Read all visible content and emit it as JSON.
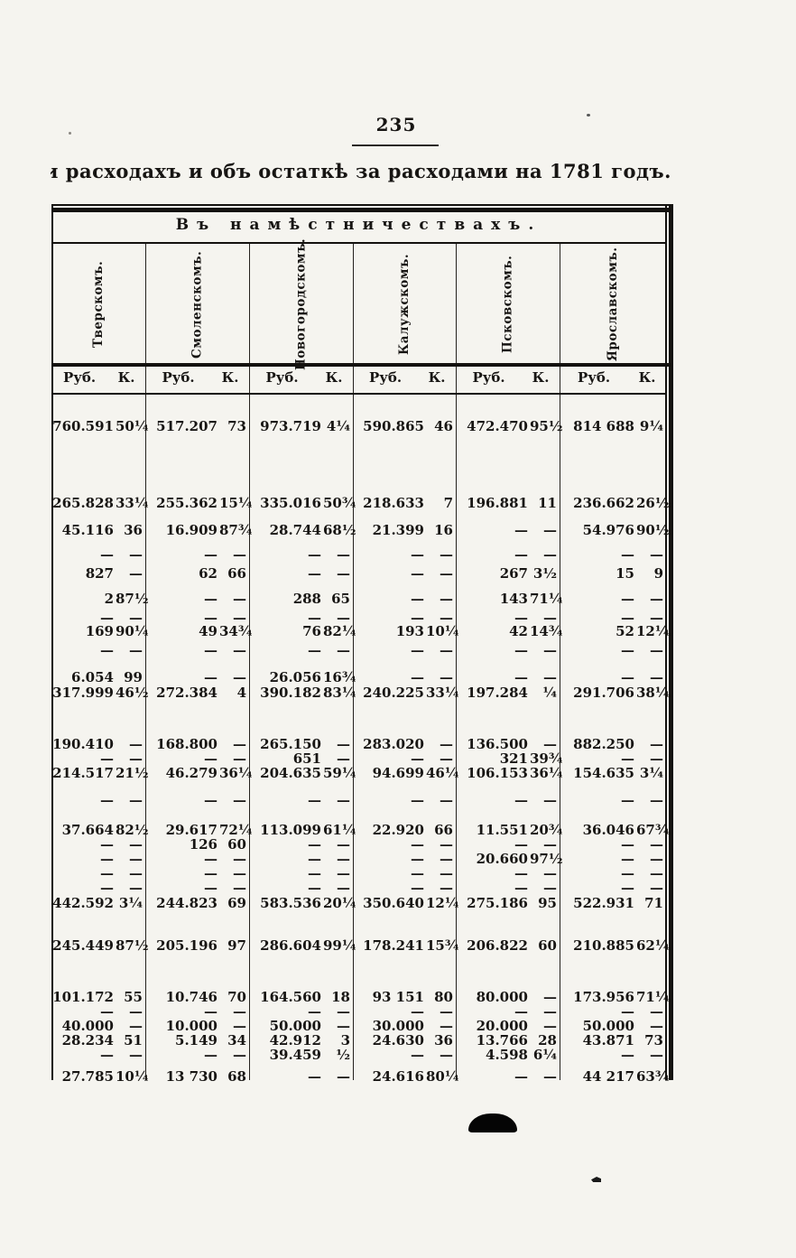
{
  "page": {
    "number": "235",
    "title_clipped_char": "и",
    "title": " расходахъ и объ остаткѣ за расходами на 1781 годъ."
  },
  "table": {
    "header": "Въ намѣстничествахъ.",
    "columns": [
      "Тверскомъ.",
      "Смоленскомъ.",
      "Новогородскомъ.",
      "Калужскомъ.",
      "Псковскомъ.",
      "Ярославскомъ."
    ],
    "money_unit": "Руб.",
    "kop_unit": "К.",
    "rows": [
      {
        "cells": [
          [
            "760.591",
            "50¼"
          ],
          [
            "517.207",
            "73"
          ],
          [
            "973.719",
            "4¼"
          ],
          [
            "590.865",
            "46"
          ],
          [
            "472.470",
            "95½"
          ],
          [
            "814 688",
            "9¼"
          ]
        ]
      },
      {
        "cells": [
          [
            "265.828",
            "33¼"
          ],
          [
            "255.362",
            "15¼"
          ],
          [
            "335.016",
            "50¾"
          ],
          [
            "218.633",
            "7"
          ],
          [
            "196.881",
            "11"
          ],
          [
            "236.662",
            "26½"
          ]
        ]
      },
      {
        "cells": [
          [
            "45.116",
            "36"
          ],
          [
            "16.909",
            "87¾"
          ],
          [
            "28.744",
            "68½"
          ],
          [
            "21.399",
            "16"
          ],
          [
            "—",
            "—"
          ],
          [
            "54.976",
            "90½"
          ]
        ]
      },
      {
        "cells": [
          [
            "—",
            "—"
          ],
          [
            "—",
            "—"
          ],
          [
            "—",
            "—"
          ],
          [
            "—",
            "—"
          ],
          [
            "—",
            "—"
          ],
          [
            "—",
            "—"
          ]
        ]
      },
      {
        "cells": [
          [
            "827",
            "—"
          ],
          [
            "62",
            "66"
          ],
          [
            "—",
            "—"
          ],
          [
            "—",
            "—"
          ],
          [
            "267",
            "3½"
          ],
          [
            "15",
            "9"
          ]
        ]
      },
      {
        "cells": [
          [
            "2",
            "87½"
          ],
          [
            "—",
            "—"
          ],
          [
            "288",
            "65"
          ],
          [
            "—",
            "—"
          ],
          [
            "143",
            "71¼"
          ],
          [
            "—",
            "—"
          ]
        ]
      },
      {
        "cells": [
          [
            "—",
            "—"
          ],
          [
            "—",
            "—"
          ],
          [
            "—",
            "—"
          ],
          [
            "—",
            "—"
          ],
          [
            "—",
            "—"
          ],
          [
            "—",
            "—"
          ]
        ]
      },
      {
        "cells": [
          [
            "169",
            "90¼"
          ],
          [
            "49",
            "34¾"
          ],
          [
            "76",
            "82¼"
          ],
          [
            "193",
            "10¼"
          ],
          [
            "42",
            "14¾"
          ],
          [
            "52",
            "12¼"
          ]
        ]
      },
      {
        "cells": [
          [
            "—",
            "—"
          ],
          [
            "—",
            "—"
          ],
          [
            "—",
            "—"
          ],
          [
            "—",
            "—"
          ],
          [
            "—",
            "—"
          ],
          [
            "—",
            "—"
          ]
        ]
      },
      {
        "cells": [
          [
            "6.054",
            "99"
          ],
          [
            "—",
            "—"
          ],
          [
            "26.056",
            "16¾"
          ],
          [
            "—",
            "—"
          ],
          [
            "—",
            "—"
          ],
          [
            "—",
            "—"
          ]
        ]
      },
      {
        "cells": [
          [
            "317.999",
            "46½"
          ],
          [
            "272.384",
            "4"
          ],
          [
            "390.182",
            "83¼"
          ],
          [
            "240.225",
            "33¼"
          ],
          [
            "197.284",
            "¼"
          ],
          [
            "291.706",
            "38¼"
          ]
        ]
      },
      {
        "cells": [
          [
            "190.410",
            "—"
          ],
          [
            "168.800",
            "—"
          ],
          [
            "265.150",
            "—"
          ],
          [
            "283.020",
            "—"
          ],
          [
            "136.500",
            "—"
          ],
          [
            "882.250",
            "—"
          ]
        ]
      },
      {
        "cells": [
          [
            "—",
            "—"
          ],
          [
            "—",
            "—"
          ],
          [
            "651",
            "—"
          ],
          [
            "—",
            "—"
          ],
          [
            "321",
            "39¾"
          ],
          [
            "—",
            "—"
          ]
        ]
      },
      {
        "cells": [
          [
            "214.517",
            "21½"
          ],
          [
            "46.279",
            "36¼"
          ],
          [
            "204.635",
            "59¼"
          ],
          [
            "94.699",
            "46¼"
          ],
          [
            "106.153",
            "36¼"
          ],
          [
            "154.635",
            "3¼"
          ]
        ]
      },
      {
        "cells": [
          [
            "—",
            "—"
          ],
          [
            "—",
            "—"
          ],
          [
            "—",
            "—"
          ],
          [
            "—",
            "—"
          ],
          [
            "—",
            "—"
          ],
          [
            "—",
            "—"
          ]
        ]
      },
      {
        "cells": [
          [
            "37.664",
            "82½"
          ],
          [
            "29.617",
            "72¼"
          ],
          [
            "113.099",
            "61¼"
          ],
          [
            "22.920",
            "66"
          ],
          [
            "11.551",
            "20¾"
          ],
          [
            "36.046",
            "67¾"
          ]
        ]
      },
      {
        "cells": [
          [
            "—",
            "—"
          ],
          [
            "126",
            "60"
          ],
          [
            "—",
            "—"
          ],
          [
            "—",
            "—"
          ],
          [
            "—",
            "—"
          ],
          [
            "—",
            "—"
          ]
        ]
      },
      {
        "cells": [
          [
            "—",
            "—"
          ],
          [
            "—",
            "—"
          ],
          [
            "—",
            "—"
          ],
          [
            "—",
            "—"
          ],
          [
            "20.660",
            "97½"
          ],
          [
            "—",
            "—"
          ]
        ]
      },
      {
        "cells": [
          [
            "—",
            "—"
          ],
          [
            "—",
            "—"
          ],
          [
            "—",
            "—"
          ],
          [
            "—",
            "—"
          ],
          [
            "—",
            "—"
          ],
          [
            "—",
            "—"
          ]
        ]
      },
      {
        "cells": [
          [
            "—",
            "—"
          ],
          [
            "—",
            "—"
          ],
          [
            "—",
            "—"
          ],
          [
            "—",
            "—"
          ],
          [
            "—",
            "—"
          ],
          [
            "—",
            "—"
          ]
        ]
      },
      {
        "cells": [
          [
            "442.592",
            "3¼"
          ],
          [
            "244.823",
            "69"
          ],
          [
            "583.536",
            "20¼"
          ],
          [
            "350.640",
            "12¼"
          ],
          [
            "275.186",
            "95"
          ],
          [
            "522.931",
            "71"
          ]
        ]
      },
      {
        "cells": [
          [
            "245.449",
            "87½"
          ],
          [
            "205.196",
            "97"
          ],
          [
            "286.604",
            "99¼"
          ],
          [
            "178.241",
            "15¾"
          ],
          [
            "206.822",
            "60"
          ],
          [
            "210.885",
            "62¼"
          ]
        ]
      },
      {
        "cells": [
          [
            "101.172",
            "55"
          ],
          [
            "10.746",
            "70"
          ],
          [
            "164.560",
            "18"
          ],
          [
            "93 151",
            "80"
          ],
          [
            "80.000",
            "—"
          ],
          [
            "173.956",
            "71¼"
          ]
        ]
      },
      {
        "cells": [
          [
            "—",
            "—"
          ],
          [
            "—",
            "—"
          ],
          [
            "—",
            "—"
          ],
          [
            "—",
            "—"
          ],
          [
            "—",
            "—"
          ],
          [
            "—",
            "—"
          ]
        ]
      },
      {
        "cells": [
          [
            "40.000",
            "—"
          ],
          [
            "10.000",
            "—"
          ],
          [
            "50.000",
            "—"
          ],
          [
            "30.000",
            "—"
          ],
          [
            "20.000",
            "—"
          ],
          [
            "50.000",
            "—"
          ]
        ]
      },
      {
        "cells": [
          [
            "28.234",
            "51"
          ],
          [
            "5.149",
            "34"
          ],
          [
            "42.912",
            "3"
          ],
          [
            "24.630",
            "36"
          ],
          [
            "13.766",
            "28"
          ],
          [
            "43.871",
            "73"
          ]
        ]
      },
      {
        "cells": [
          [
            "—",
            "—"
          ],
          [
            "—",
            "—"
          ],
          [
            "39.459",
            "½"
          ],
          [
            "—",
            "—"
          ],
          [
            "4.598",
            "6¼"
          ],
          [
            "—",
            "—"
          ]
        ]
      },
      {
        "cells": [
          [
            "27.785",
            "10¼"
          ],
          [
            "13 730",
            "68"
          ],
          [
            "—",
            "—"
          ],
          [
            "24.616",
            "80¼"
          ],
          [
            "—",
            "—"
          ],
          [
            "44 217",
            "63¾"
          ]
        ]
      }
    ]
  }
}
